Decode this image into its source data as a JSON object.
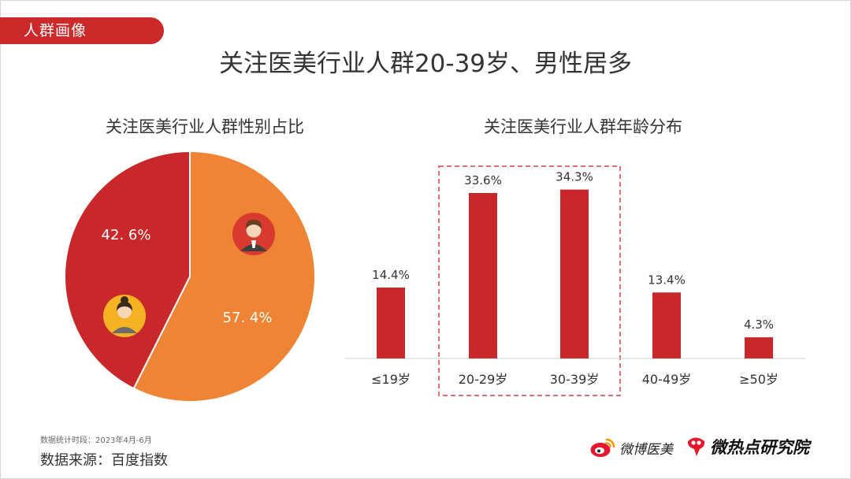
{
  "section_tag": "人群画像",
  "page_title": "关注医美行业人群20-39岁、男性居多",
  "chart_data": [
    {
      "type": "pie",
      "title": "关注医美行业人群性别占比",
      "slices": [
        {
          "label": "女性",
          "value": 42.6,
          "display": "42. 6%",
          "color": "#c9282a",
          "icon": "female-avatar-icon"
        },
        {
          "label": "男性",
          "value": 57.4,
          "display": "57. 4%",
          "color": "#ee8434",
          "icon": "male-avatar-icon"
        }
      ]
    },
    {
      "type": "bar",
      "title": "关注医美行业人群年龄分布",
      "categories": [
        "≤19岁",
        "20-29岁",
        "30-39岁",
        "40-49岁",
        "≥50岁"
      ],
      "values": [
        14.4,
        33.6,
        34.3,
        13.4,
        4.3
      ],
      "value_labels": [
        "14.4%",
        "33.6%",
        "34.3%",
        "13.4%",
        "4.3%"
      ],
      "ylim": [
        0,
        40
      ],
      "bar_color": "#c9282a",
      "highlight": [
        "20-29岁",
        "30-39岁"
      ],
      "highlight_color": "#d04040",
      "grid": false
    }
  ],
  "source": {
    "period": "数据统计时段：2023年4月-6月",
    "label": "数据来源：百度指数"
  },
  "brands": {
    "weibo": "微博医美",
    "research": "微热点研究院",
    "weibo_icon": "weibo-logo-icon",
    "research_icon": "weirediandian-logo-icon"
  }
}
